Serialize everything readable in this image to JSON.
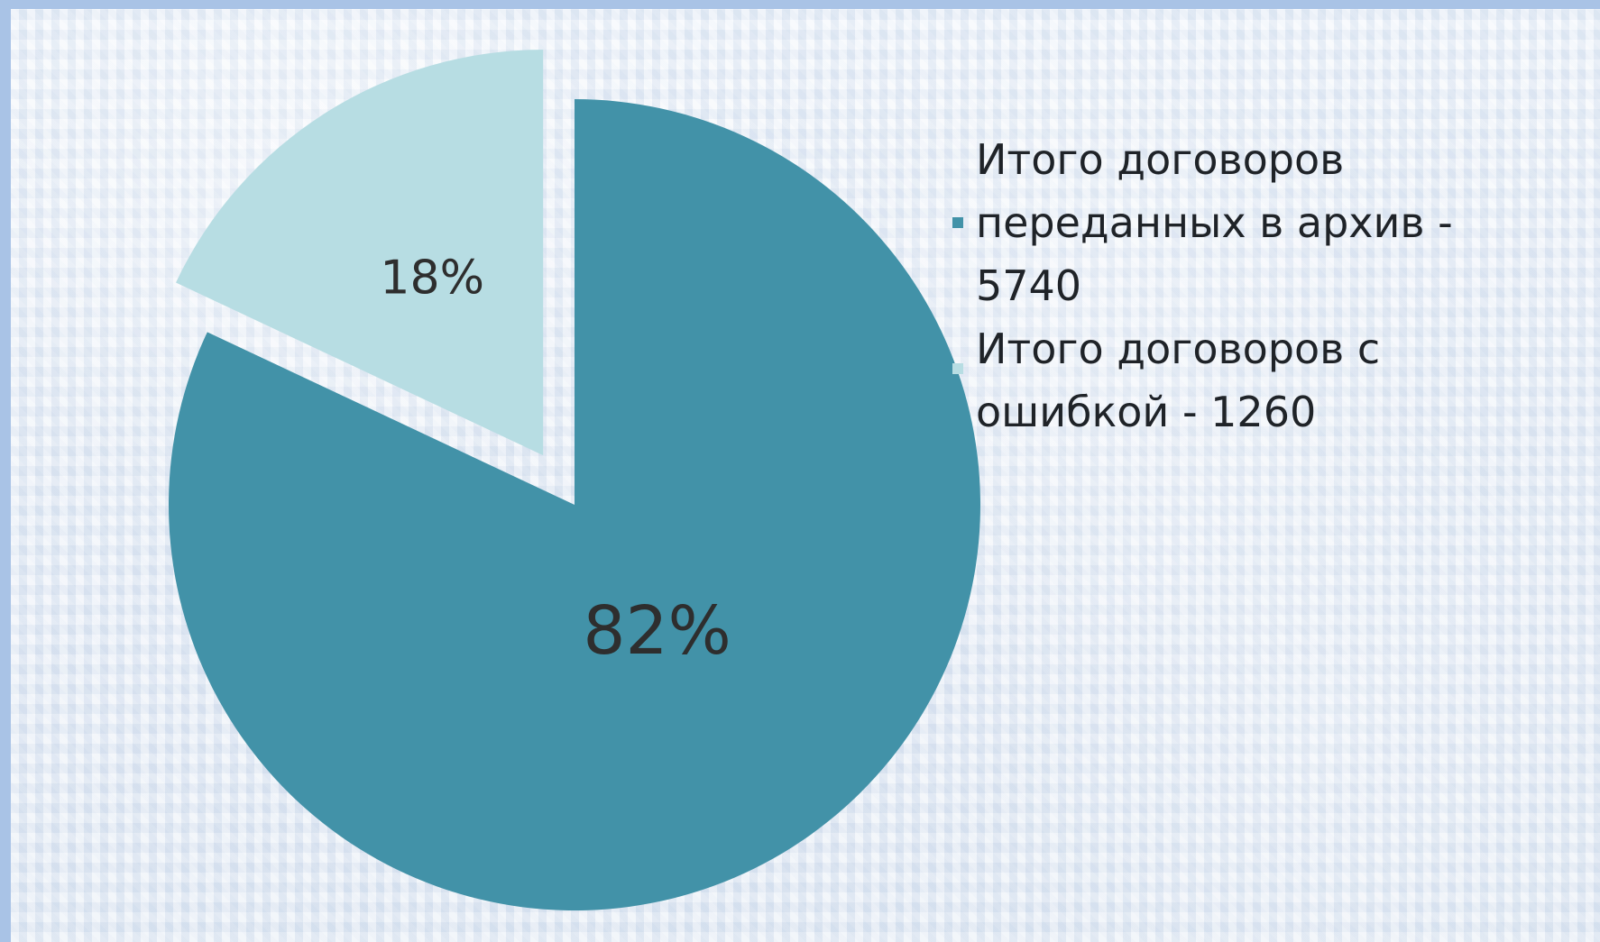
{
  "chart_data": {
    "type": "pie",
    "slices": [
      {
        "label": "Итого договоров переданных в архив - 5740",
        "display_label": "Итого договоров\nпереданных в архив -\n5740",
        "value": 5740,
        "percent_label": "82%",
        "color": "#4292a8"
      },
      {
        "label": "Итого договоров с ошибкой - 1260",
        "display_label": "Итого договоров с\nошибкой - 1260",
        "value": 1260,
        "percent_label": "18%",
        "color": "#b7dde3"
      }
    ],
    "legend_position": "right",
    "exploded_slice": "Итого договоров с ошибкой - 1260"
  },
  "colors": {
    "background_border": "#a9c3e6",
    "background_light": "#eef3fa",
    "label_text": "#2e2e2e"
  }
}
